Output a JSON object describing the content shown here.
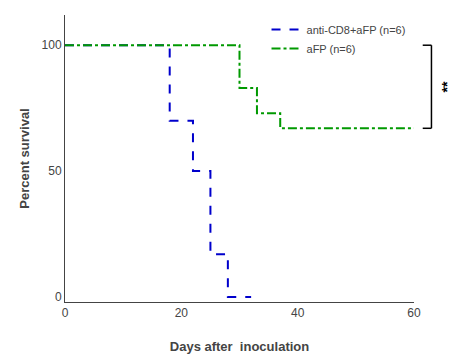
{
  "chart_data": {
    "type": "step",
    "xlabel": "Days after  inoculation",
    "ylabel": "Percent survival",
    "series": [
      {
        "name": "anti-CD8+aFP (n=6)",
        "color": "#0000cc",
        "line_style": "dashed",
        "x": [
          0,
          18,
          18,
          22,
          22,
          25,
          25,
          28,
          28,
          32,
          32
        ],
        "values": [
          100,
          100,
          70,
          70,
          50,
          50,
          17,
          17,
          0,
          0,
          0
        ]
      },
      {
        "name": "aFP (n=6)",
        "color": "#009900",
        "line_style": "dashdot",
        "x": [
          0,
          18,
          18,
          30,
          30,
          33,
          33,
          37,
          37,
          60
        ],
        "values": [
          100,
          100,
          100,
          100,
          83,
          83,
          73,
          73,
          67,
          67
        ]
      }
    ],
    "xlim": [
      0,
      60
    ],
    "xticks": [
      0,
      20,
      40,
      60
    ],
    "ylim": [
      -2,
      112
    ],
    "yticks": [
      0,
      50,
      100
    ],
    "grid": false,
    "legend": "upper right",
    "annotations": [
      {
        "text": "**",
        "y": [
          67,
          100
        ]
      }
    ]
  }
}
